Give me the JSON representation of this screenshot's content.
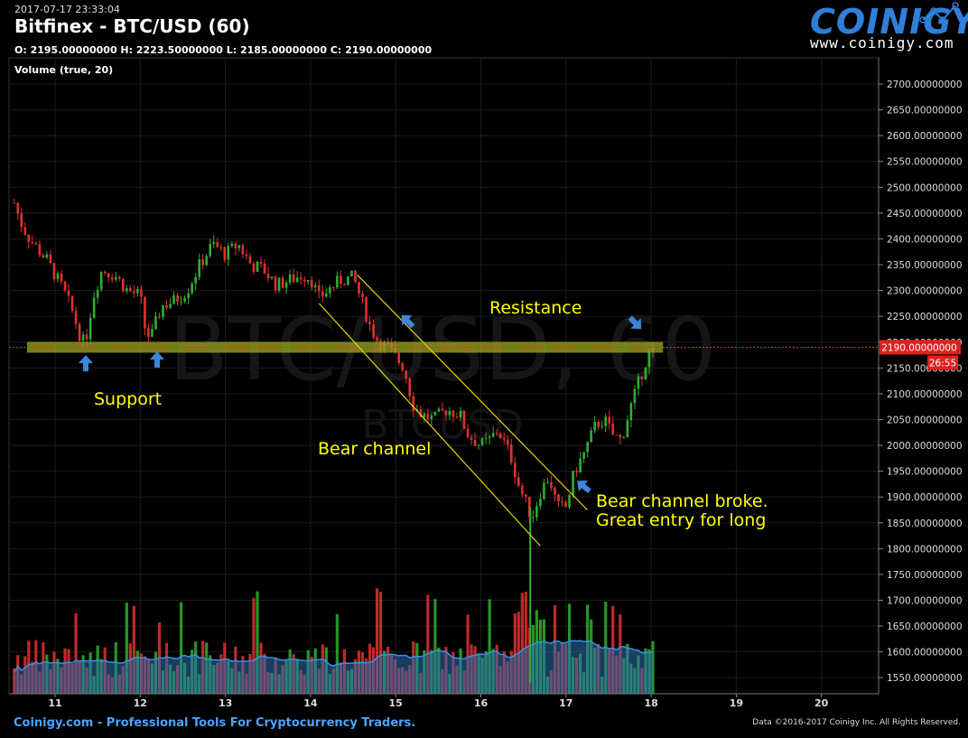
{
  "header": {
    "datetime": "2017-07-17 23:33:04",
    "title": "Bitfinex - BTC/USD (60)",
    "ohlc": "O: 2195.00000000 H: 2223.50000000 L: 2185.00000000 C: 2190.00000000",
    "volume_label": "Volume (true, 20)"
  },
  "logo": {
    "name": "COINIGY",
    "site": "www.coinigy.com"
  },
  "watermark": {
    "main": "BTC/USD, 60",
    "sub": "BTCUSD"
  },
  "footer": {
    "left": "Coinigy.com - Professional Tools For Cryptocurrency Traders.",
    "right": "Data ©2016-2017 Coinigy Inc. All Rights Reserved."
  },
  "price_tag": {
    "price": "2190.00000000",
    "timer": "26:55"
  },
  "annotations": {
    "support": "Support",
    "resistance": "Resistance",
    "bear_channel": "Bear channel",
    "broke_line1": "Bear channel broke.",
    "broke_line2": "Great entry for long"
  },
  "colors": {
    "up": "#2fae2f",
    "down": "#e03030",
    "level": "#9a9a20",
    "channel": "#e6d400",
    "arrow": "#3a86d8",
    "volume_ma": "#2a6fb0"
  },
  "chart_data": {
    "type": "candlestick",
    "title": "Bitfinex - BTC/USD (60)",
    "x_ticks": [
      "11",
      "12",
      "13",
      "14",
      "15",
      "16",
      "17",
      "18",
      "19",
      "20"
    ],
    "y_ticks": [
      "2700.00000000",
      "2650.00000000",
      "2600.00000000",
      "2550.00000000",
      "2500.00000000",
      "2450.00000000",
      "2400.00000000",
      "2350.00000000",
      "2300.00000000",
      "2250.00000000",
      "2200.00000000",
      "2150.00000000",
      "2100.00000000",
      "2050.00000000",
      "2000.00000000",
      "1950.00000000",
      "1900.00000000",
      "1850.00000000",
      "1800.00000000",
      "1750.00000000",
      "1700.00000000",
      "1650.00000000",
      "1600.00000000",
      "1550.00000000"
    ],
    "ylim": [
      1520,
      2720
    ],
    "xlim_days": [
      10.5,
      20.6
    ],
    "close_path": [
      [
        10.52,
        2470
      ],
      [
        10.6,
        2430
      ],
      [
        10.7,
        2400
      ],
      [
        10.8,
        2380
      ],
      [
        10.9,
        2360
      ],
      [
        11.0,
        2330
      ],
      [
        11.1,
        2300
      ],
      [
        11.2,
        2260
      ],
      [
        11.3,
        2210
      ],
      [
        11.35,
        2195
      ],
      [
        11.45,
        2290
      ],
      [
        11.55,
        2340
      ],
      [
        11.7,
        2330
      ],
      [
        11.85,
        2300
      ],
      [
        12.0,
        2290
      ],
      [
        12.05,
        2230
      ],
      [
        12.12,
        2205
      ],
      [
        12.25,
        2270
      ],
      [
        12.4,
        2280
      ],
      [
        12.55,
        2300
      ],
      [
        12.7,
        2350
      ],
      [
        12.85,
        2390
      ],
      [
        13.0,
        2370
      ],
      [
        13.15,
        2390
      ],
      [
        13.3,
        2350
      ],
      [
        13.45,
        2340
      ],
      [
        13.6,
        2310
      ],
      [
        13.75,
        2320
      ],
      [
        13.9,
        2330
      ],
      [
        14.0,
        2325
      ],
      [
        14.1,
        2285
      ],
      [
        14.2,
        2300
      ],
      [
        14.35,
        2320
      ],
      [
        14.5,
        2325
      ],
      [
        14.6,
        2280
      ],
      [
        14.7,
        2230
      ],
      [
        14.8,
        2200
      ],
      [
        14.9,
        2190
      ],
      [
        15.0,
        2170
      ],
      [
        15.1,
        2150
      ],
      [
        15.2,
        2080
      ],
      [
        15.3,
        2060
      ],
      [
        15.45,
        2050
      ],
      [
        15.6,
        2070
      ],
      [
        15.75,
        2060
      ],
      [
        15.85,
        2020
      ],
      [
        16.0,
        2000
      ],
      [
        16.1,
        2010
      ],
      [
        16.2,
        2030
      ],
      [
        16.35,
        1980
      ],
      [
        16.45,
        1920
      ],
      [
        16.55,
        1880
      ],
      [
        16.6,
        1860
      ],
      [
        16.7,
        1910
      ],
      [
        16.8,
        1940
      ],
      [
        16.9,
        1880
      ],
      [
        17.0,
        1880
      ],
      [
        17.1,
        1950
      ],
      [
        17.2,
        1980
      ],
      [
        17.35,
        2040
      ],
      [
        17.45,
        2050
      ],
      [
        17.55,
        2020
      ],
      [
        17.65,
        2010
      ],
      [
        17.75,
        2070
      ],
      [
        17.85,
        2120
      ],
      [
        17.95,
        2170
      ],
      [
        18.02,
        2190
      ]
    ],
    "support_resistance_level": 2190,
    "bear_channel": {
      "upper": [
        [
          14.55,
          2330
        ],
        [
          17.25,
          1875
        ]
      ],
      "lower": [
        [
          14.1,
          2275
        ],
        [
          16.7,
          1805
        ]
      ]
    },
    "volume_series": "relative volume bars with 20-period moving average"
  }
}
